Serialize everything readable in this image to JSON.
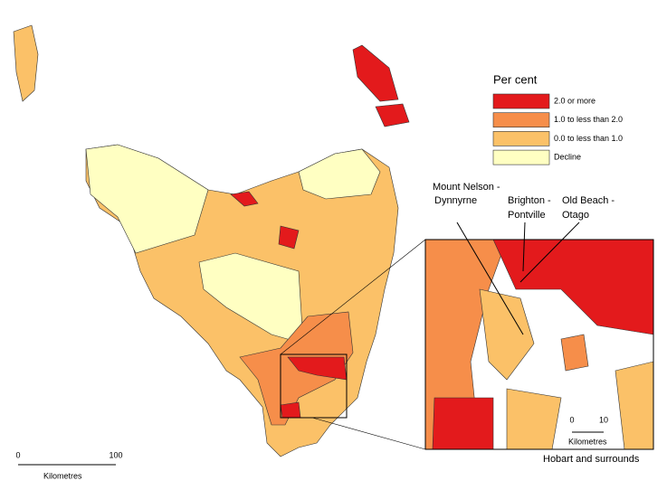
{
  "legend": {
    "title": "Per cent",
    "items": [
      {
        "label": "2.0 or more",
        "color": "#e31a1c"
      },
      {
        "label": "1.0 to less than 2.0",
        "color": "#f68e4a"
      },
      {
        "label": "0.0 to less than 1.0",
        "color": "#fbc168"
      },
      {
        "label": "Decline",
        "color": "#ffffc2"
      }
    ]
  },
  "labels": [
    {
      "line1": "Mount Nelson -",
      "line2": "Dynnyrne"
    },
    {
      "line1": "Brighton -",
      "line2": "Pontville"
    },
    {
      "line1": "Old Beach -",
      "line2": "Otago"
    }
  ],
  "scale_bar": {
    "ticks": [
      "0",
      "100"
    ],
    "unit": "Kilometres"
  },
  "inset": {
    "caption": "Hobart and surrounds",
    "scale_bar": {
      "ticks": [
        "0",
        "10"
      ],
      "unit": "Kilometres"
    }
  }
}
